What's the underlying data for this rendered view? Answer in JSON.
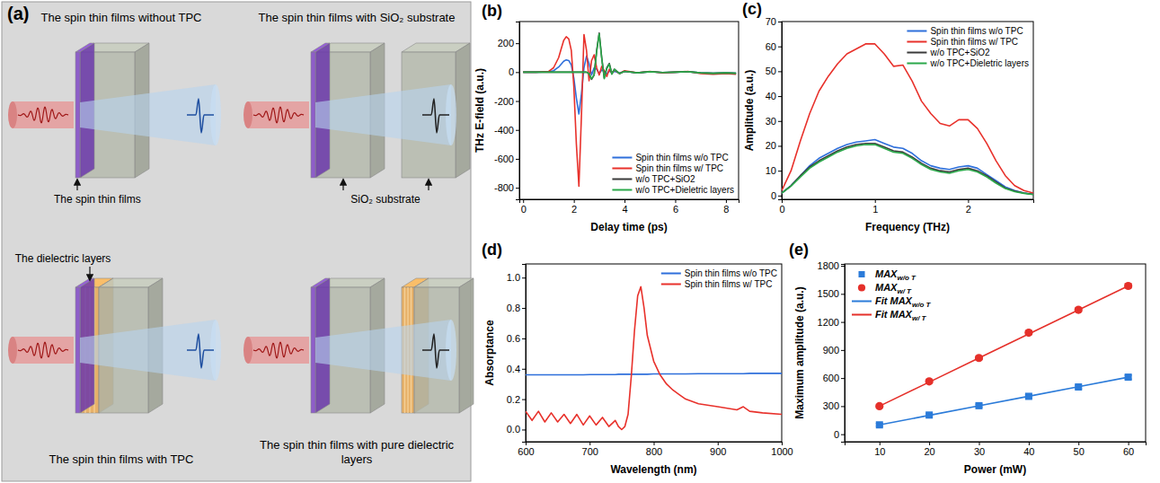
{
  "diagram": {
    "title": "(a)",
    "panels": [
      {
        "title": "The spin thin films without TPC",
        "callouts": [
          "The spin thin films"
        ]
      },
      {
        "title": "The spin thin films with SiO₂ substrate",
        "callouts": [
          "SiO₂ substrate"
        ]
      },
      {
        "title": "The spin thin films with TPC",
        "callouts": [
          "The dielectric layers"
        ]
      },
      {
        "title": "The spin thin films with pure dielectric layers",
        "callouts": []
      }
    ]
  },
  "chart_data": [
    {
      "title": "(b)",
      "type": "line",
      "x_label": "Delay time (ps)",
      "y_label": "THz E-field (a.u.)",
      "xlim": [
        -0.15,
        8.5
      ],
      "xticks": [
        0,
        2,
        4,
        6,
        8
      ],
      "ylim": [
        -880,
        350
      ],
      "yticks": [
        -800,
        -600,
        -400,
        -200,
        0,
        200
      ],
      "legend": "lower right",
      "x": [
        0,
        0.5,
        1.0,
        1.2,
        1.4,
        1.5,
        1.6,
        1.7,
        1.8,
        1.9,
        2.0,
        2.1,
        2.2,
        2.3,
        2.4,
        2.5,
        2.6,
        2.7,
        2.8,
        2.9,
        3.0,
        3.1,
        3.2,
        3.3,
        3.4,
        3.5,
        3.6,
        3.8,
        4.0,
        4.5,
        5.0,
        5.5,
        6.0,
        6.5,
        7.0,
        7.5,
        8.0,
        8.4
      ],
      "series": [
        {
          "name": "Spin thin films w/o TPC",
          "color": "#2e6fdb",
          "values": [
            0,
            0,
            2,
            10,
            35,
            55,
            75,
            85,
            80,
            50,
            -40,
            -180,
            -290,
            -150,
            30,
            110,
            60,
            -20,
            30,
            20,
            -10,
            15,
            5,
            -10,
            8,
            -5,
            5,
            -5,
            5,
            -5,
            3,
            -3,
            0,
            3,
            -5,
            -8,
            -5,
            -8
          ]
        },
        {
          "name": "Spin thin films w/ TPC",
          "color": "#e8312b",
          "values": [
            0,
            0,
            5,
            30,
            100,
            160,
            220,
            245,
            230,
            150,
            -100,
            -500,
            -790,
            -300,
            260,
            150,
            -60,
            80,
            120,
            30,
            -20,
            40,
            10,
            -30,
            20,
            -10,
            15,
            -10,
            10,
            -5,
            5,
            -5,
            0,
            5,
            -10,
            -15,
            -10,
            -15
          ]
        },
        {
          "name": "w/o TPC+SiO2",
          "color": "#3a3a3a",
          "values": [
            0,
            0,
            0,
            0,
            0,
            0,
            0,
            0,
            0,
            0,
            0,
            0,
            0,
            0,
            0,
            0,
            -10,
            -50,
            -20,
            150,
            270,
            100,
            -40,
            30,
            60,
            -10,
            20,
            -10,
            5,
            -5,
            3,
            -3,
            0,
            3,
            -5,
            -8,
            -5,
            -8
          ]
        },
        {
          "name": "w/o TPC+Dieletric layers",
          "color": "#2ba84a",
          "values": [
            0,
            0,
            0,
            0,
            0,
            0,
            0,
            0,
            0,
            0,
            0,
            0,
            0,
            0,
            0,
            0,
            -10,
            -45,
            -20,
            140,
            265,
            95,
            -45,
            25,
            55,
            -15,
            20,
            -10,
            5,
            -5,
            3,
            -3,
            0,
            3,
            -5,
            -8,
            -5,
            -8
          ]
        }
      ]
    },
    {
      "title": "(c)",
      "type": "line",
      "x_label": "Frequency (THz)",
      "y_label": "Amplitude (a.u.)",
      "xlim": [
        0,
        2.7
      ],
      "xticks": [
        0,
        1,
        2
      ],
      "ylim": [
        -1.5,
        70
      ],
      "yticks": [
        0,
        10,
        20,
        30,
        40,
        50,
        60,
        70
      ],
      "legend": "upper right",
      "x": [
        0,
        0.1,
        0.2,
        0.3,
        0.4,
        0.5,
        0.6,
        0.7,
        0.8,
        0.9,
        1.0,
        1.1,
        1.2,
        1.3,
        1.4,
        1.5,
        1.6,
        1.7,
        1.8,
        1.9,
        2.0,
        2.1,
        2.2,
        2.3,
        2.4,
        2.5,
        2.6,
        2.7
      ],
      "series": [
        {
          "name": "Spin thin films w/o TPC",
          "color": "#2e6fdb",
          "values": [
            1,
            4,
            8,
            12,
            15,
            17,
            19,
            20.5,
            21.5,
            22,
            22.5,
            21,
            19.5,
            19,
            17,
            14,
            12,
            11,
            10.5,
            11.5,
            12,
            11,
            8.5,
            6,
            3.5,
            2,
            1,
            0.5
          ]
        },
        {
          "name": "Spin thin films w/ TPC",
          "color": "#e8312b",
          "values": [
            2,
            10,
            22,
            33,
            42,
            48,
            53,
            57,
            59,
            61,
            61,
            57,
            52,
            52.5,
            46,
            38,
            33,
            29,
            28,
            30.5,
            30.5,
            27,
            21,
            14,
            8,
            4,
            2,
            1
          ]
        },
        {
          "name": "w/o TPC+SiO2",
          "color": "#3a3a3a",
          "values": [
            1,
            4,
            8,
            11.5,
            14,
            16,
            18,
            19.5,
            20.5,
            21,
            21,
            19.5,
            18,
            17.5,
            15.5,
            13,
            11,
            10,
            9.5,
            10.5,
            11,
            10,
            8,
            5.5,
            3,
            1.8,
            1,
            0.5
          ]
        },
        {
          "name": "w/o TPC+Dieletric layers",
          "color": "#2ba84a",
          "values": [
            1,
            3.8,
            7.5,
            11,
            13.5,
            15.5,
            17.5,
            19,
            20,
            20.5,
            20.5,
            19,
            17.5,
            17,
            15,
            12.5,
            10.5,
            9.5,
            9,
            10,
            10.5,
            9.5,
            7.5,
            5,
            2.8,
            1.6,
            0.9,
            0.4
          ]
        }
      ]
    },
    {
      "title": "(d)",
      "type": "line",
      "x_label": "Wavelength (nm)",
      "y_label": "Absorptance",
      "xlim": [
        600,
        1000
      ],
      "xticks": [
        600,
        700,
        800,
        900,
        1000
      ],
      "ylim": [
        -0.08,
        1.09
      ],
      "yticks": [
        {
          "value": 0,
          "label": "0.0"
        },
        0.2,
        0.4,
        0.6,
        0.8,
        {
          "value": 1,
          "label": "1.0"
        }
      ],
      "legend": "upper right",
      "x": [
        600,
        610,
        620,
        630,
        640,
        650,
        660,
        670,
        680,
        690,
        700,
        710,
        720,
        730,
        740,
        745,
        750,
        755,
        760,
        765,
        770,
        775,
        780,
        785,
        790,
        800,
        810,
        820,
        830,
        840,
        850,
        870,
        900,
        930,
        940,
        950,
        970,
        1000
      ],
      "series": [
        {
          "name": "Spin thin films w/o TPC",
          "color": "#2e6fdb",
          "values": [
            0.36,
            0.36,
            0.36,
            0.36,
            0.36,
            0.36,
            0.36,
            0.36,
            0.36,
            0.36,
            0.362,
            0.362,
            0.362,
            0.362,
            0.362,
            0.364,
            0.364,
            0.364,
            0.364,
            0.364,
            0.364,
            0.364,
            0.364,
            0.364,
            0.364,
            0.366,
            0.366,
            0.366,
            0.366,
            0.366,
            0.366,
            0.368,
            0.368,
            0.368,
            0.368,
            0.37,
            0.37,
            0.37
          ]
        },
        {
          "name": "Spin thin films w/ TPC",
          "color": "#e8312b",
          "values": [
            0.12,
            0.06,
            0.12,
            0.05,
            0.11,
            0.05,
            0.1,
            0.04,
            0.1,
            0.03,
            0.09,
            0.03,
            0.08,
            0.02,
            0.06,
            0.02,
            0.0,
            0.02,
            0.1,
            0.35,
            0.65,
            0.88,
            0.94,
            0.8,
            0.62,
            0.45,
            0.36,
            0.3,
            0.26,
            0.23,
            0.2,
            0.17,
            0.15,
            0.13,
            0.15,
            0.12,
            0.11,
            0.1
          ]
        }
      ]
    },
    {
      "title": "(e)",
      "type": "scatter",
      "x_label": "Power (mW)",
      "y_label": "Maximum amplitude (a.u.)",
      "xlim": [
        3,
        63.5
      ],
      "xticks": [
        10,
        20,
        30,
        40,
        50,
        60
      ],
      "ylim": [
        -80,
        1820
      ],
      "yticks": [
        0,
        300,
        600,
        900,
        1200,
        1500,
        1800
      ],
      "legend": "upper left",
      "x": [
        10,
        20,
        30,
        40,
        50,
        60
      ],
      "series": [
        {
          "name": "MAXw/o T",
          "type": "scatter",
          "marker": "square",
          "color": "#2b7bd9",
          "values": [
            100,
            205,
            305,
            405,
            505,
            610
          ],
          "errors": [
            15,
            15,
            15,
            18,
            18,
            20
          ]
        },
        {
          "name": "MAXw/ T",
          "type": "scatter",
          "marker": "circle",
          "color": "#e5302a",
          "values": [
            300,
            565,
            815,
            1085,
            1330,
            1585
          ],
          "errors": [
            15,
            18,
            18,
            20,
            20,
            22
          ]
        },
        {
          "name": "Fit MAXw/o T",
          "type": "line",
          "color": "#2b7bd9",
          "values": [
            100,
            202,
            304,
            406,
            508,
            610
          ]
        },
        {
          "name": "Fit MAXw/ T",
          "type": "line",
          "color": "#e5302a",
          "values": [
            300,
            557,
            814,
            1071,
            1328,
            1585
          ]
        }
      ]
    }
  ]
}
